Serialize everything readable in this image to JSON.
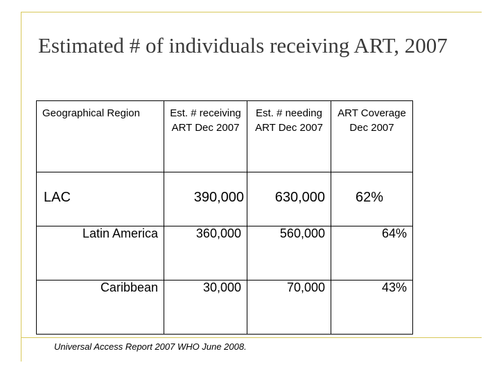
{
  "title": "Estimated # of individuals receiving ART, 2007",
  "table": {
    "headers": [
      "Geographical Region",
      "Est. # receiving ART Dec 2007",
      "Est. # needing ART Dec 2007",
      "ART Coverage Dec 2007"
    ],
    "rows": [
      {
        "region": "LAC",
        "receiving": "390,000",
        "needing": "630,000",
        "coverage": "62%"
      },
      {
        "region": "Latin America",
        "receiving": "360,000",
        "needing": "560,000",
        "coverage": "64%"
      },
      {
        "region": "Caribbean",
        "receiving": "30,000",
        "needing": "70,000",
        "coverage": "43%"
      }
    ]
  },
  "source": "Universal Access Report 2007 WHO June 2008.",
  "colors": {
    "frame": "#d8c85a",
    "title": "#3a3a3a"
  }
}
